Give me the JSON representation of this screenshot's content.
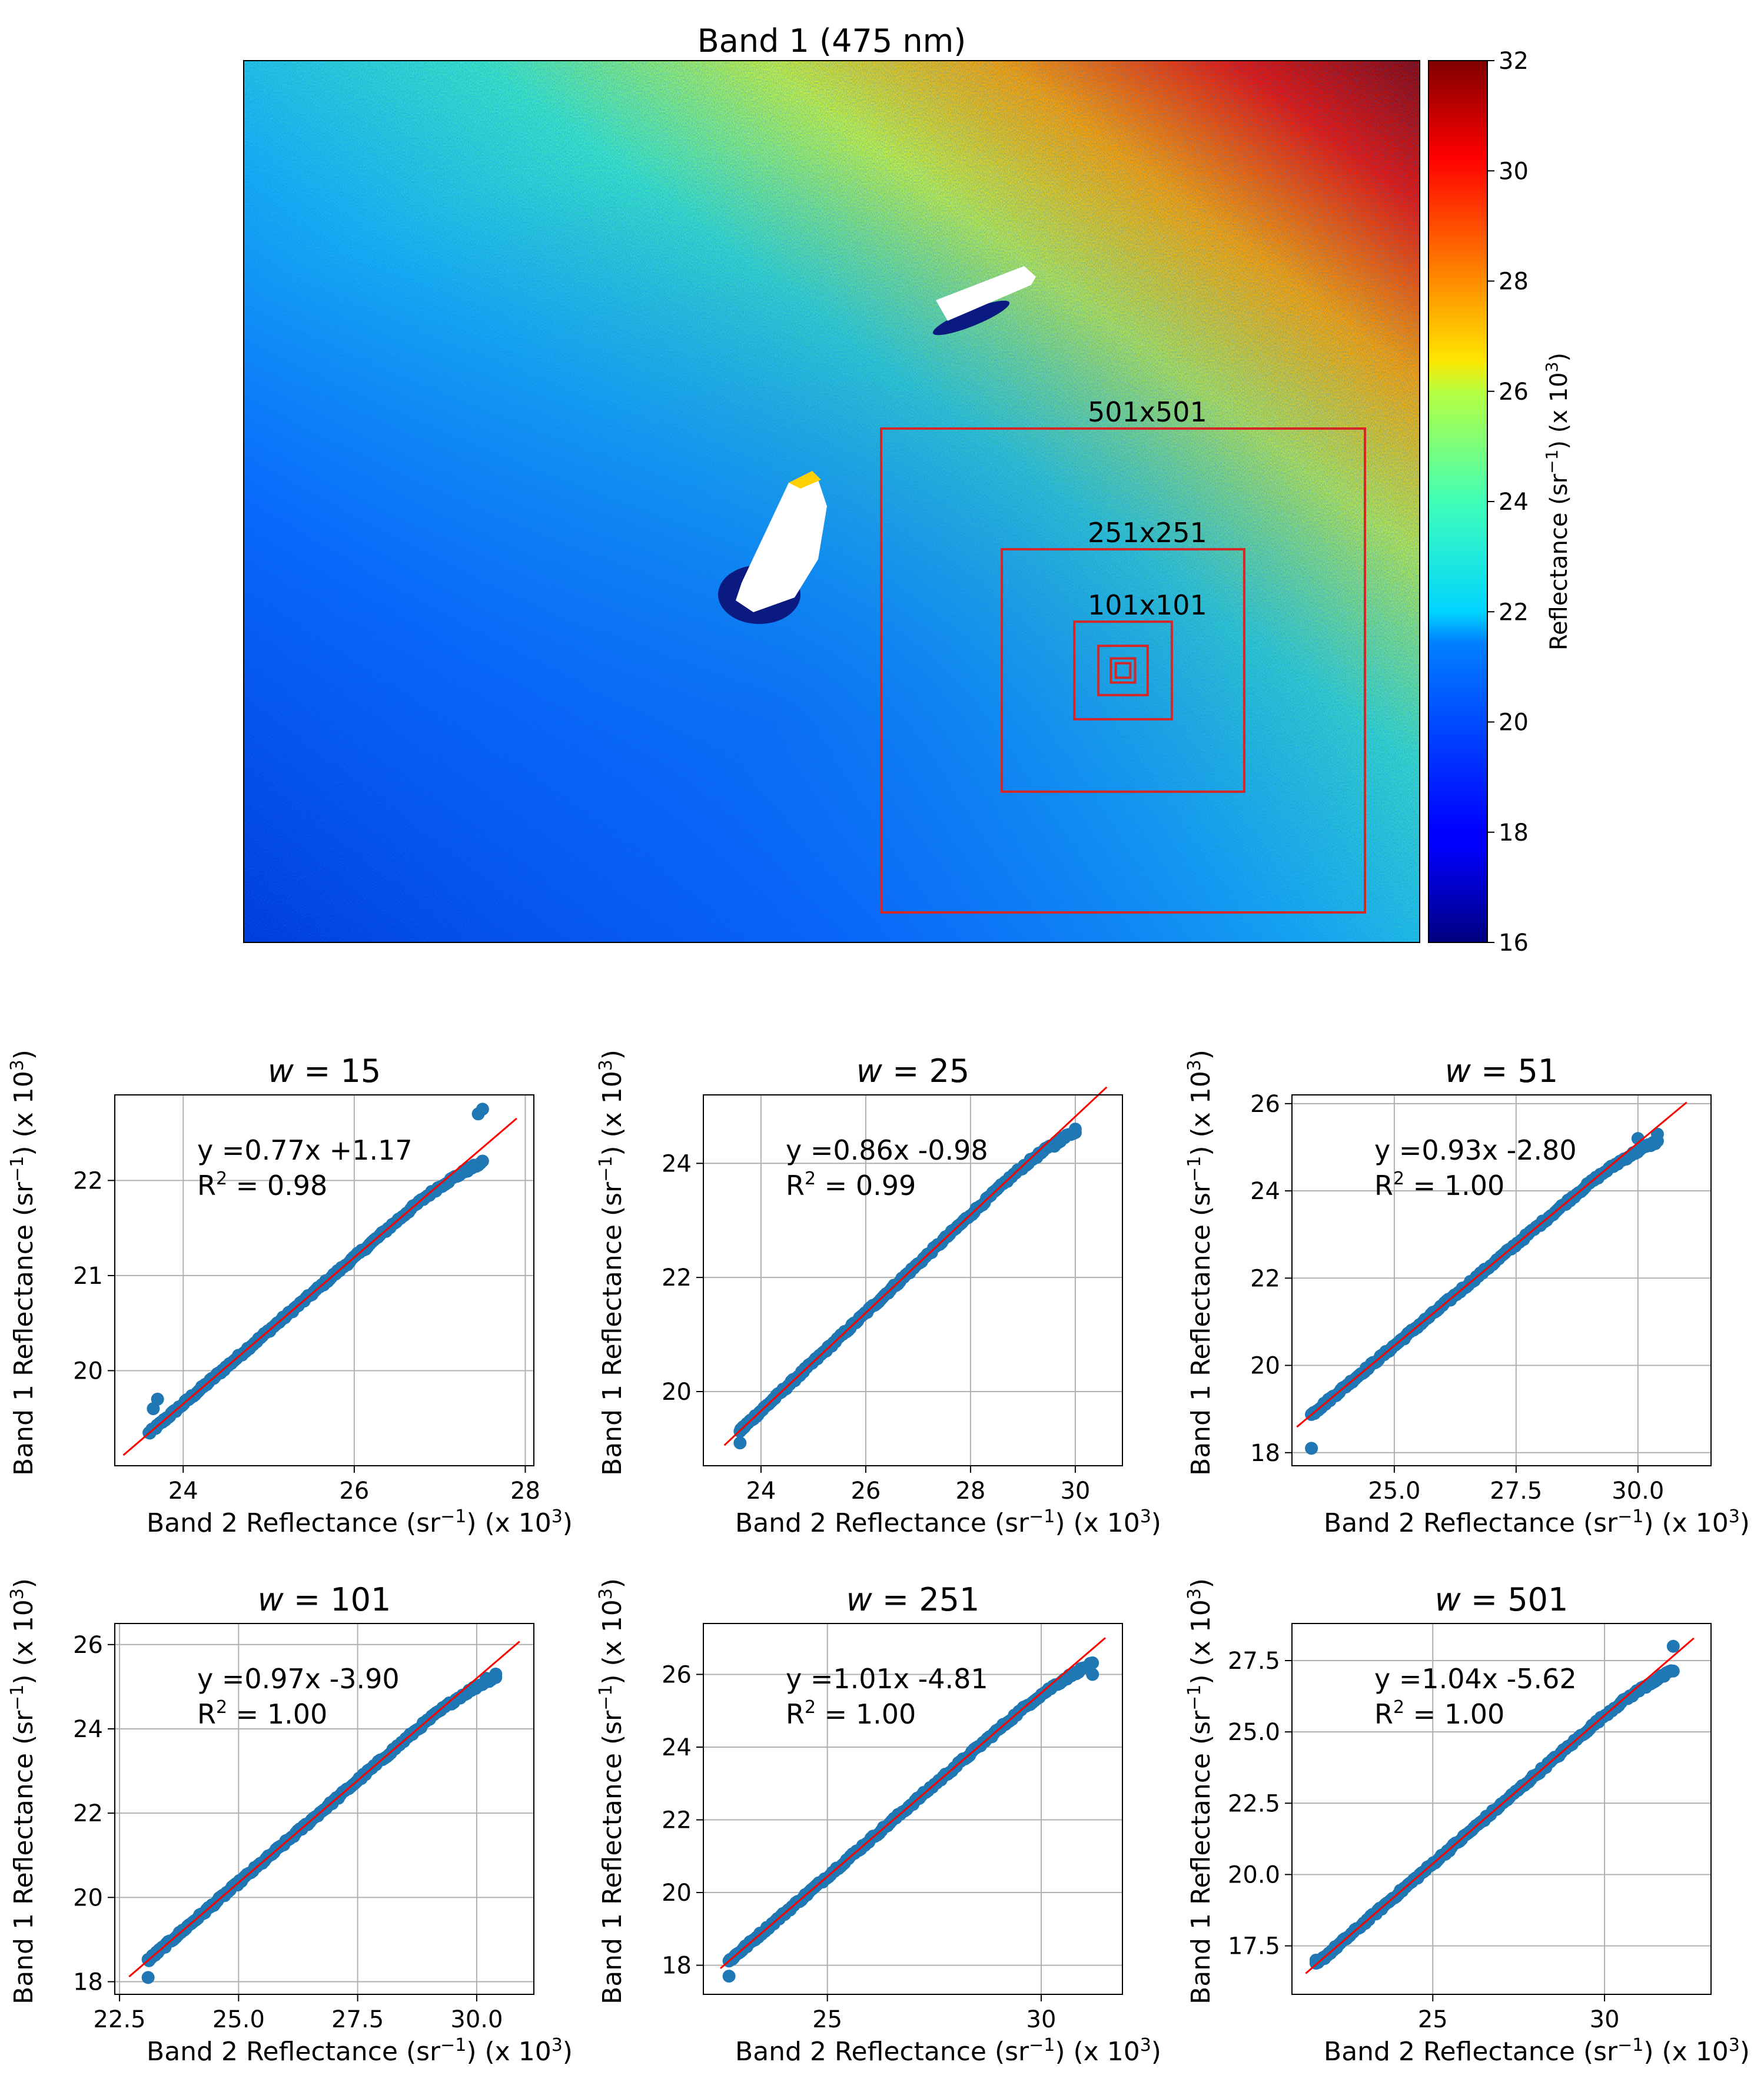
{
  "chart_data": [
    {
      "type": "heatmap",
      "title": "Band 1 (475 nm)",
      "colormap": "jet",
      "colorbar": {
        "label_text": "Reflectance (sr",
        "label_exp": "−1",
        "label_tail": ") (x 10",
        "label_tail_exp": "3",
        "label_close": ")",
        "min": 16,
        "max": 32,
        "ticks": [
          "16",
          "18",
          "20",
          "22",
          "24",
          "26",
          "28",
          "30",
          "32"
        ]
      },
      "annotations": [
        {
          "label": "501x501",
          "size": 501
        },
        {
          "label": "251x251",
          "size": 251
        },
        {
          "label": "101x101",
          "size": 101
        },
        {
          "label": "",
          "size": 51
        },
        {
          "label": "",
          "size": 25
        },
        {
          "label": "",
          "size": 15
        }
      ],
      "box_color": "#d62728"
    },
    {
      "type": "scatter",
      "title_var": "w",
      "title_val": "= 15",
      "xlim": [
        23.2,
        28.1
      ],
      "ylim": [
        19.0,
        22.9
      ],
      "xticks": [
        "24",
        "26",
        "28"
      ],
      "xtick_vals": [
        24,
        26,
        28
      ],
      "yticks": [
        "20",
        "21",
        "22"
      ],
      "ytick_vals": [
        20,
        21,
        22
      ],
      "equation": "y =0.77x +1.17",
      "r2_prefix": "R",
      "r2_exp": "2",
      "r2_value": " = 0.98",
      "fit": {
        "slope": 0.77,
        "intercept": 1.17,
        "x_range": [
          23.3,
          27.9
        ]
      },
      "points_x_range": [
        23.6,
        27.5
      ],
      "points_y_range": [
        19.6,
        22.8
      ],
      "outliers": [
        [
          23.65,
          19.6
        ],
        [
          23.7,
          19.7
        ],
        [
          27.45,
          22.7
        ],
        [
          27.5,
          22.75
        ]
      ]
    },
    {
      "type": "scatter",
      "title_var": "w",
      "title_val": "= 25",
      "xlim": [
        22.9,
        30.9
      ],
      "ylim": [
        18.7,
        25.2
      ],
      "xticks": [
        "24",
        "26",
        "28",
        "30"
      ],
      "xtick_vals": [
        24,
        26,
        28,
        30
      ],
      "yticks": [
        "20",
        "22",
        "24"
      ],
      "ytick_vals": [
        20,
        22,
        24
      ],
      "equation": "y =0.86x -0.98",
      "r2_prefix": "R",
      "r2_exp": "2",
      "r2_value": " = 0.99",
      "fit": {
        "slope": 0.86,
        "intercept": -0.98,
        "x_range": [
          23.3,
          30.6
        ]
      },
      "points_x_range": [
        23.6,
        30.0
      ],
      "points_y_range": [
        19.3,
        24.6
      ],
      "outliers": [
        [
          23.6,
          19.1
        ],
        [
          29.6,
          24.3
        ],
        [
          30.0,
          24.6
        ]
      ]
    },
    {
      "type": "scatter",
      "title_var": "w",
      "title_val": "= 51",
      "xlim": [
        22.9,
        31.5
      ],
      "ylim": [
        17.7,
        26.2
      ],
      "xticks": [
        "25.0",
        "27.5",
        "30.0"
      ],
      "xtick_vals": [
        25.0,
        27.5,
        30.0
      ],
      "yticks": [
        "18",
        "20",
        "22",
        "24",
        "26"
      ],
      "ytick_vals": [
        18,
        20,
        22,
        24,
        26
      ],
      "equation": "y =0.93x -2.80",
      "r2_prefix": "R",
      "r2_exp": "2",
      "r2_value": " = 1.00",
      "fit": {
        "slope": 0.93,
        "intercept": -2.8,
        "x_range": [
          23.0,
          31.0
        ]
      },
      "points_x_range": [
        23.3,
        30.4
      ],
      "points_y_range": [
        18.9,
        25.3
      ],
      "outliers": [
        [
          23.3,
          18.1
        ],
        [
          30.0,
          25.2
        ],
        [
          30.4,
          25.3
        ]
      ]
    },
    {
      "type": "scatter",
      "title_var": "w",
      "title_val": "= 101",
      "xlim": [
        22.4,
        31.2
      ],
      "ylim": [
        17.7,
        26.5
      ],
      "xticks": [
        "22.5",
        "25.0",
        "27.5",
        "30.0"
      ],
      "xtick_vals": [
        22.5,
        25.0,
        27.5,
        30.0
      ],
      "yticks": [
        "18",
        "20",
        "22",
        "24",
        "26"
      ],
      "ytick_vals": [
        18,
        20,
        22,
        24,
        26
      ],
      "equation": "y =0.97x -3.90",
      "r2_prefix": "R",
      "r2_exp": "2",
      "r2_value": " = 1.00",
      "fit": {
        "slope": 0.97,
        "intercept": -3.9,
        "x_range": [
          22.7,
          30.9
        ]
      },
      "points_x_range": [
        23.1,
        30.4
      ],
      "points_y_range": [
        18.6,
        25.3
      ],
      "outliers": [
        [
          23.1,
          18.1
        ],
        [
          30.2,
          25.2
        ],
        [
          30.4,
          25.3
        ]
      ]
    },
    {
      "type": "scatter",
      "title_var": "w",
      "title_val": "= 251",
      "xlim": [
        22.1,
        31.9
      ],
      "ylim": [
        17.2,
        27.4
      ],
      "xticks": [
        "25",
        "30"
      ],
      "xtick_vals": [
        25,
        30
      ],
      "yticks": [
        "18",
        "20",
        "22",
        "24",
        "26"
      ],
      "ytick_vals": [
        18,
        20,
        22,
        24,
        26
      ],
      "equation": "y =1.01x -4.81",
      "r2_prefix": "R",
      "r2_exp": "2",
      "r2_value": " = 1.00",
      "fit": {
        "slope": 1.01,
        "intercept": -4.81,
        "x_range": [
          22.5,
          31.5
        ]
      },
      "points_x_range": [
        22.7,
        31.2
      ],
      "points_y_range": [
        17.9,
        26.0
      ],
      "outliers": [
        [
          22.7,
          17.7
        ],
        [
          31.2,
          26.0
        ]
      ]
    },
    {
      "type": "scatter",
      "title_var": "w",
      "title_val": "= 501",
      "xlim": [
        20.9,
        33.1
      ],
      "ylim": [
        15.8,
        28.8
      ],
      "xticks": [
        "25",
        "30"
      ],
      "xtick_vals": [
        25,
        30
      ],
      "yticks": [
        "17.5",
        "20.0",
        "22.5",
        "25.0",
        "27.5"
      ],
      "ytick_vals": [
        17.5,
        20.0,
        22.5,
        25.0,
        27.5
      ],
      "equation": "y =1.04x -5.62",
      "r2_prefix": "R",
      "r2_exp": "2",
      "r2_value": " = 1.00",
      "fit": {
        "slope": 1.04,
        "intercept": -5.62,
        "x_range": [
          21.3,
          32.6
        ]
      },
      "points_x_range": [
        21.6,
        32.0
      ],
      "points_y_range": [
        17.0,
        27.5
      ],
      "outliers": [
        [
          21.6,
          17.0
        ],
        [
          32.0,
          28.0
        ]
      ]
    }
  ],
  "axis_labels": {
    "x_text": "Band 2 Reflectance (sr",
    "x_exp": "−1",
    "x_tail": ") (x 10",
    "x_tail_exp": "3",
    "x_close": ")",
    "y_text": "Band 1 Reflectance (sr",
    "y_exp": "−1",
    "y_tail": ") (x 10",
    "y_tail_exp": "3",
    "y_close": ")"
  },
  "colors": {
    "points": "#1f77b4",
    "fit_line": "#ff0000",
    "grid": "#b0b0b0",
    "boxes": "#d62728"
  }
}
